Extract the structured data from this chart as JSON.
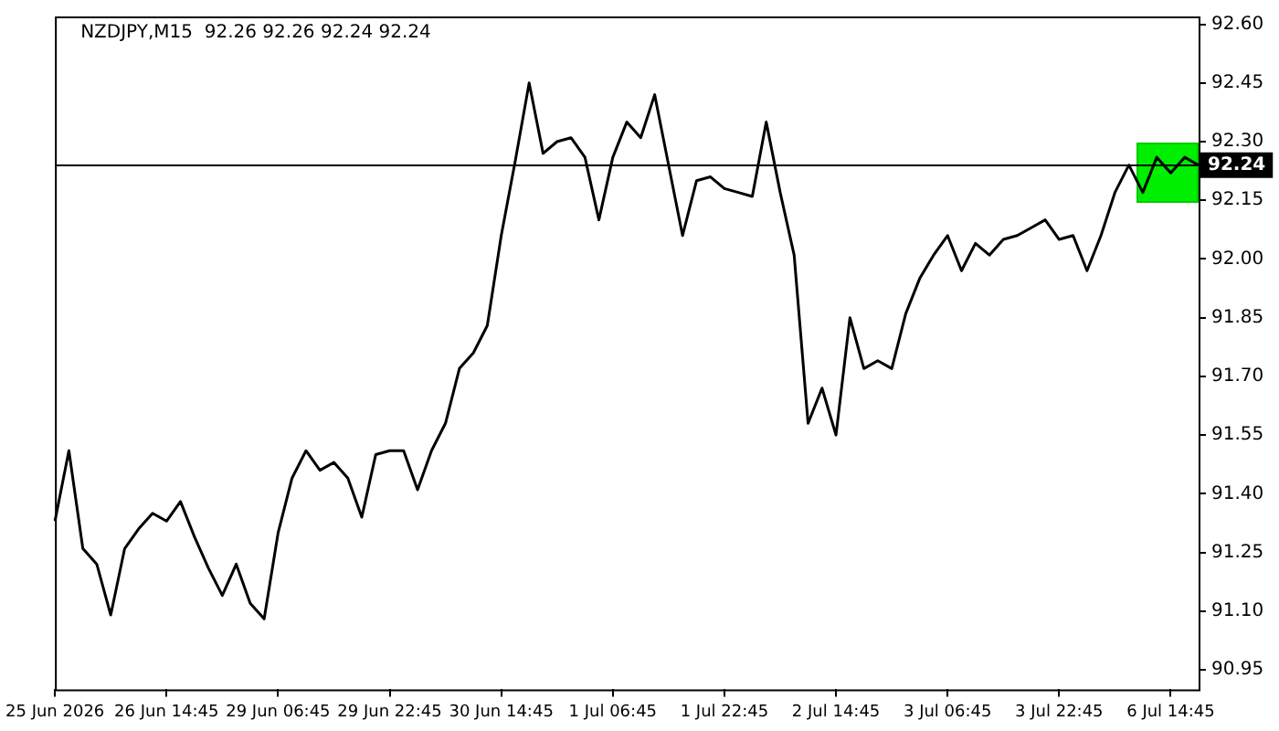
{
  "chart_data": {
    "type": "line",
    "title": "NZDJPY,M15  92.26 92.26 92.24 92.24",
    "categories": [
      "25 Jun 2026",
      null,
      null,
      null,
      null,
      null,
      null,
      null,
      "26 Jun 14:45",
      null,
      null,
      null,
      null,
      null,
      null,
      null,
      "29 Jun 06:45",
      null,
      null,
      null,
      null,
      null,
      null,
      null,
      "29 Jun 22:45",
      null,
      null,
      null,
      null,
      null,
      null,
      null,
      "30 Jun 14:45",
      null,
      null,
      null,
      null,
      null,
      null,
      null,
      "1 Jul 06:45",
      null,
      null,
      null,
      null,
      null,
      null,
      null,
      "1 Jul 22:45",
      null,
      null,
      null,
      null,
      null,
      null,
      null,
      "2 Jul 14:45",
      null,
      null,
      null,
      null,
      null,
      null,
      null,
      "3 Jul 06:45",
      null,
      null,
      null,
      null,
      null,
      null,
      null,
      "3 Jul 22:45",
      null,
      null,
      null,
      null,
      null,
      null,
      null,
      "6 Jul 14:45",
      null,
      null
    ],
    "series": [
      {
        "color": "#000000",
        "values": [
          91.33,
          91.51,
          91.26,
          91.22,
          91.09,
          91.26,
          91.31,
          91.35,
          91.33,
          91.38,
          91.29,
          91.21,
          91.14,
          91.22,
          91.12,
          91.08,
          91.3,
          91.44,
          91.51,
          91.46,
          91.48,
          91.44,
          91.34,
          91.5,
          91.51,
          91.51,
          91.41,
          91.51,
          91.58,
          91.72,
          91.76,
          91.83,
          92.06,
          92.25,
          92.45,
          92.27,
          92.3,
          92.31,
          92.26,
          92.1,
          92.26,
          92.35,
          92.31,
          92.42,
          92.24,
          92.06,
          92.2,
          92.21,
          92.18,
          92.17,
          92.16,
          92.35,
          92.17,
          92.01,
          91.58,
          91.67,
          91.55,
          91.85,
          91.72,
          91.74,
          91.72,
          91.86,
          91.95,
          92.01,
          92.06,
          91.97,
          92.04,
          92.01,
          92.05,
          92.06,
          92.08,
          92.1,
          92.05,
          92.06,
          91.97,
          92.06,
          92.17,
          92.24,
          92.17,
          92.26,
          92.22,
          92.26,
          92.24
        ]
      }
    ],
    "ylim": [
      90.9,
      92.62
    ],
    "yticks": [
      {
        "value": 90.95,
        "label": "90.95"
      },
      {
        "value": 91.1,
        "label": "91.10"
      },
      {
        "value": 91.25,
        "label": "91.25"
      },
      {
        "value": 91.4,
        "label": "91.40"
      },
      {
        "value": 91.55,
        "label": "91.55"
      },
      {
        "value": 91.7,
        "label": "91.70"
      },
      {
        "value": 91.85,
        "label": "91.85"
      },
      {
        "value": 92,
        "label": "92.00"
      },
      {
        "value": 92.15,
        "label": "92.15"
      },
      {
        "value": 92.3,
        "label": "92.30"
      },
      {
        "value": 92.45,
        "label": "92.45"
      },
      {
        "value": 92.6,
        "label": "92.60"
      }
    ],
    "ref_lines": [
      {
        "axis": "y",
        "value": 92.24,
        "label": "92.24",
        "color": "#000000"
      }
    ],
    "grid": false,
    "legend": false,
    "marker": "none",
    "line_style": "solid"
  }
}
